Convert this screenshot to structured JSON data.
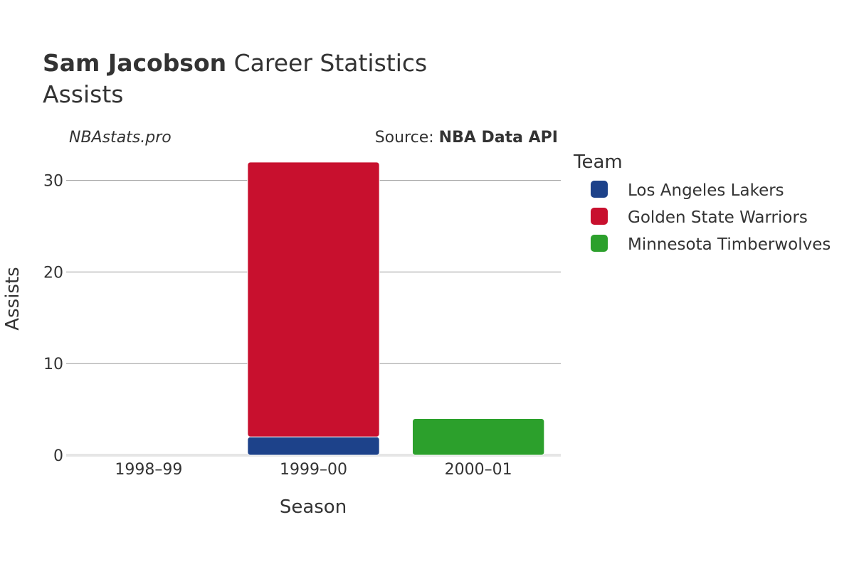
{
  "header": {
    "player_name": "Sam Jacobson",
    "title_suffix": " Career Statistics",
    "subtitle": "Assists"
  },
  "credits": {
    "site": "NBAstats.pro",
    "source_label": "Source: ",
    "source_name": "NBA Data API"
  },
  "colors": {
    "lakers": "#1D428A",
    "warriors": "#C8102E",
    "timberwolves": "#2CA02C",
    "grid": "#999999",
    "text": "#333333"
  },
  "chart_data": {
    "type": "bar",
    "stacked": true,
    "title": "Sam Jacobson Career Statistics",
    "subtitle": "Assists",
    "xlabel": "Season",
    "ylabel": "Assists",
    "categories": [
      "1998–99",
      "1999–00",
      "2000–01"
    ],
    "ylim": [
      0,
      33
    ],
    "yticks": [
      0,
      10,
      20,
      30
    ],
    "legend_title": "Team",
    "legend_position": "right",
    "series": [
      {
        "name": "Los Angeles Lakers",
        "color": "#1D428A",
        "values": [
          0,
          2,
          0
        ]
      },
      {
        "name": "Golden State Warriors",
        "color": "#C8102E",
        "values": [
          0,
          30,
          0
        ]
      },
      {
        "name": "Minnesota Timberwolves",
        "color": "#2CA02C",
        "values": [
          0,
          0,
          4
        ]
      }
    ]
  }
}
